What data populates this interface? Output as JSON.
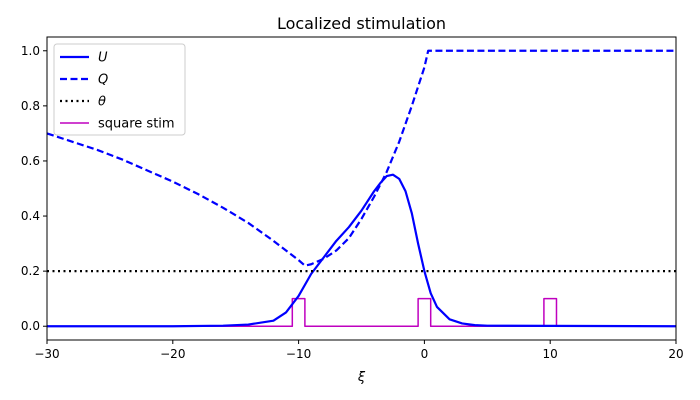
{
  "chart_data": {
    "type": "line",
    "title": "Localized stimulation",
    "xlabel": "ξ",
    "ylabel": "",
    "xlim": [
      -30,
      20
    ],
    "ylim": [
      -0.05,
      1.05
    ],
    "xticks": [
      -30,
      -20,
      -10,
      0,
      10,
      20
    ],
    "yticks": [
      0.0,
      0.2,
      0.4,
      0.6,
      0.8,
      1.0
    ],
    "ytick_labels": [
      "0.0",
      "0.2",
      "0.4",
      "0.6",
      "0.8",
      "1.0"
    ],
    "legend_position": "upper-left",
    "series": [
      {
        "name": "U",
        "label_style": "italic",
        "color": "#0000ff",
        "linestyle": "solid",
        "x": [
          -30,
          -20,
          -16,
          -14,
          -12,
          -11,
          -10,
          -9,
          -8,
          -7,
          -6,
          -5,
          -4,
          -3.5,
          -3,
          -2.5,
          -2,
          -1.5,
          -1,
          -0.5,
          0,
          0.5,
          1,
          2,
          3,
          4,
          5,
          20
        ],
        "y": [
          0.0,
          0.0,
          0.002,
          0.006,
          0.02,
          0.05,
          0.11,
          0.19,
          0.25,
          0.31,
          0.36,
          0.42,
          0.49,
          0.52,
          0.545,
          0.55,
          0.535,
          0.49,
          0.41,
          0.3,
          0.2,
          0.12,
          0.07,
          0.025,
          0.01,
          0.004,
          0.002,
          0.0
        ]
      },
      {
        "name": "Q",
        "label_style": "italic",
        "color": "#0000ff",
        "linestyle": "dashed",
        "x": [
          -30,
          -28,
          -26,
          -24,
          -22,
          -20,
          -18,
          -16,
          -14,
          -12,
          -10,
          -9.5,
          -9,
          -8,
          -7,
          -6,
          -5,
          -4,
          -3,
          -2,
          -1,
          0,
          0.3,
          1,
          20
        ],
        "y": [
          0.7,
          0.67,
          0.64,
          0.605,
          0.565,
          0.525,
          0.48,
          0.43,
          0.375,
          0.31,
          0.24,
          0.22,
          0.225,
          0.245,
          0.275,
          0.32,
          0.39,
          0.47,
          0.56,
          0.67,
          0.8,
          0.94,
          1.0,
          1.0,
          1.0
        ]
      },
      {
        "name": "θ",
        "label_style": "italic",
        "color": "#000000",
        "linestyle": "dotted",
        "x": [
          -30,
          20
        ],
        "y": [
          0.2,
          0.2
        ]
      },
      {
        "name": "square stim",
        "label_style": "normal",
        "color": "#bf00bf",
        "linestyle": "solid",
        "x": [
          -30,
          -10.5,
          -10.5,
          -9.5,
          -9.5,
          -0.5,
          -0.5,
          0.5,
          0.5,
          9.5,
          9.5,
          10.5,
          10.5,
          20
        ],
        "y": [
          0,
          0,
          0.1,
          0.1,
          0,
          0,
          0.1,
          0.1,
          0,
          0,
          0.1,
          0.1,
          0,
          0
        ]
      }
    ]
  }
}
